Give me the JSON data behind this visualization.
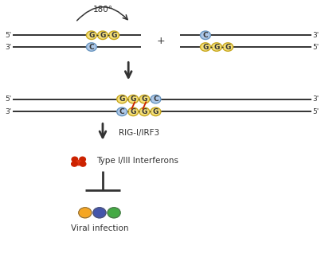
{
  "bg_color": "#ffffff",
  "text_color": "#444444",
  "label_180": "180°",
  "label_plus": "+",
  "label_rig": "RIG-I/IRF3",
  "label_interferon": "Type I/III Interferons",
  "label_viral": "Viral infection",
  "yellow_color": "#f5e07a",
  "blue_color": "#aec8e8",
  "yellow_edge": "#c8a820",
  "blue_edge": "#6a96c0",
  "red_color": "#cc2200",
  "orange_color": "#f5a623",
  "purple_color": "#4455aa",
  "green_color": "#44aa44",
  "arrow_color": "#333333",
  "line_color": "#333333",
  "node_r": 0.016
}
